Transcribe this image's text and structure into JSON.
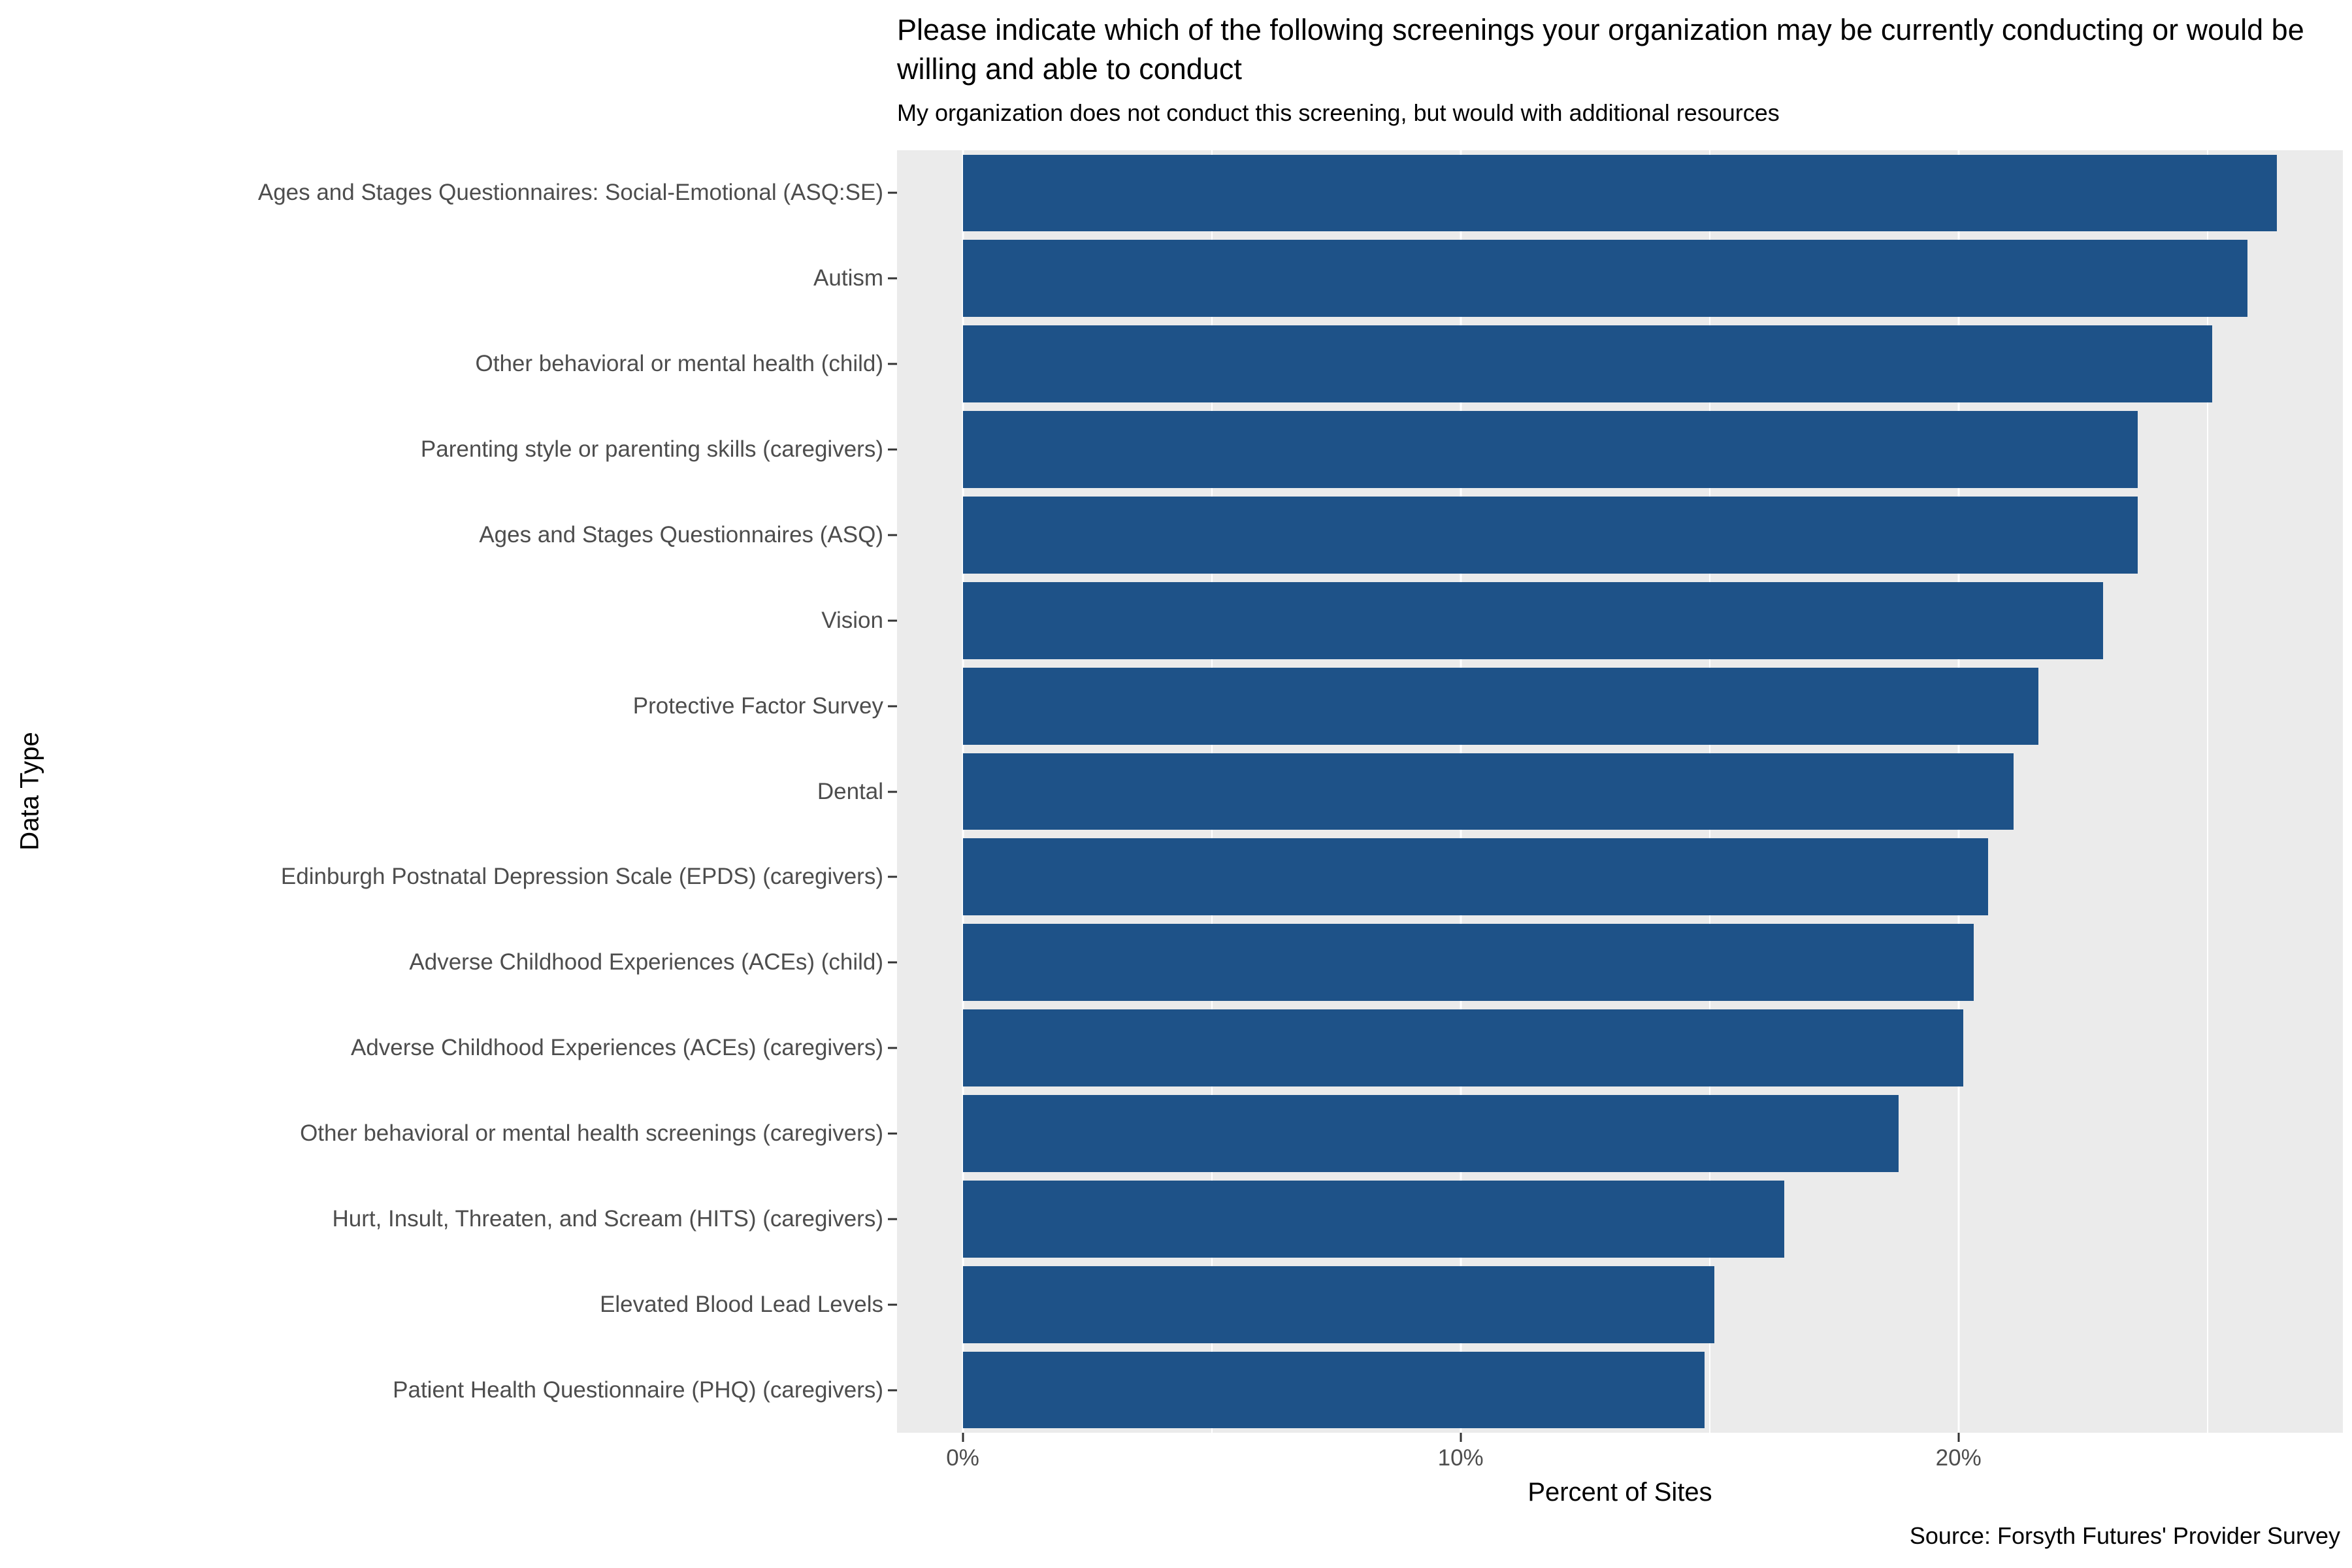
{
  "chart_data": {
    "type": "bar",
    "orientation": "horizontal",
    "title": "Please indicate which of the following screenings your organization may be currently conducting or would be willing and able to conduct",
    "subtitle": "My organization does not conduct this screening, but would with additional resources",
    "xlabel": "Percent of Sites",
    "ylabel": "Data Type",
    "caption": "Source: Forsyth Futures' Provider Survey",
    "categories": [
      "Ages and Stages Questionnaires: Social-Emotional (ASQ:SE)",
      "Autism",
      "Other behavioral or mental health (child)",
      "Parenting style or parenting skills (caregivers)",
      "Ages and Stages Questionnaires (ASQ)",
      "Vision",
      "Protective Factor Survey",
      "Dental",
      "Edinburgh Postnatal Depression Scale (EPDS) (caregivers)",
      "Adverse Childhood Experiences (ACEs) (child)",
      "Adverse Childhood Experiences (ACEs) (caregivers)",
      "Other behavioral or mental health screenings (caregivers)",
      "Hurt, Insult, Threaten, and Scream (HITS) (caregivers)",
      "Elevated Blood Lead Levels",
      "Patient Health Questionnaire (PHQ) (caregivers)"
    ],
    "values": [
      26.4,
      25.8,
      25.1,
      23.6,
      23.6,
      22.9,
      21.6,
      21.1,
      20.6,
      20.3,
      20.1,
      18.8,
      16.5,
      15.1,
      14.9
    ],
    "value_unit": "%",
    "xlim": [
      -1.32,
      27.72
    ],
    "x_major_ticks": [
      {
        "value": 0,
        "label": "0%"
      },
      {
        "value": 10,
        "label": "10%"
      },
      {
        "value": 20,
        "label": "20%"
      }
    ],
    "x_minor_ticks": [
      5,
      15,
      25
    ],
    "bar_color": "#1E5288",
    "panel_color": "#EBEBEB",
    "grid": "vertical-white-major-minor",
    "legend_position": "none"
  }
}
